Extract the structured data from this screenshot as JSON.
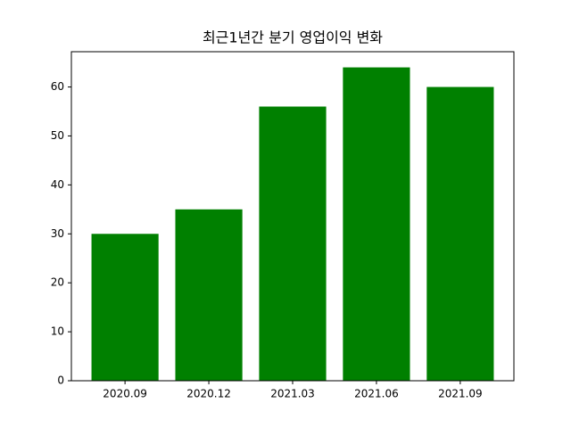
{
  "chart_data": {
    "type": "bar",
    "title": "최근1년간 분기 영업이익 변화",
    "categories": [
      "2020.09",
      "2020.12",
      "2021.03",
      "2021.06",
      "2021.09"
    ],
    "values": [
      30,
      35,
      56,
      64,
      60
    ],
    "color": "#008000",
    "ylim": [
      0,
      67.2
    ],
    "yticks": [
      0,
      10,
      20,
      30,
      40,
      50,
      60
    ],
    "grid": false
  }
}
